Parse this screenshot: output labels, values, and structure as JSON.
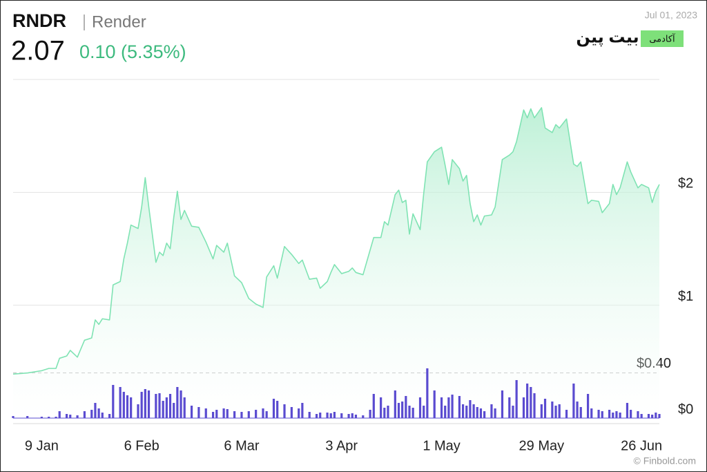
{
  "header": {
    "symbol": "RNDR",
    "name": "Render",
    "price": "2.07",
    "change": "0.10 (5.35%)",
    "date": "Jul 01, 2023"
  },
  "branding": {
    "logo": "بیت پین",
    "badge": "آکادمی",
    "credit": "© Finbold.com"
  },
  "chart_data": {
    "type": "line",
    "x": [
      0,
      4,
      8,
      10,
      12,
      13,
      15,
      16,
      18,
      20,
      22,
      23,
      24,
      25,
      27,
      28,
      30,
      31,
      32,
      33,
      35,
      36,
      37,
      38,
      40,
      41,
      42,
      43,
      44,
      45,
      46,
      47,
      48,
      50,
      52,
      54,
      56,
      57,
      59,
      60,
      62,
      64,
      66,
      68,
      70,
      71,
      73,
      74,
      76,
      78,
      80,
      81,
      83,
      85,
      86,
      88,
      89,
      90,
      92,
      94,
      95,
      96,
      98,
      100,
      101,
      103,
      104,
      105,
      107,
      108,
      109,
      110,
      111,
      112,
      114,
      115,
      116,
      118,
      120,
      121,
      122,
      123,
      125,
      126,
      127,
      128,
      129,
      130,
      131,
      132,
      134,
      135,
      137,
      139,
      140,
      141,
      143,
      144,
      145,
      146,
      148,
      149,
      151,
      152,
      153,
      155,
      157,
      158,
      159,
      161,
      162,
      164,
      165,
      167,
      168,
      169,
      170,
      172,
      173,
      175,
      176,
      178,
      179,
      180,
      181
    ],
    "series": [
      {
        "color": "#7fe3b3",
        "values": [
          0.39,
          0.4,
          0.42,
          0.44,
          0.44,
          0.53,
          0.55,
          0.6,
          0.54,
          0.69,
          0.71,
          0.87,
          0.83,
          0.88,
          0.87,
          1.18,
          1.21,
          1.41,
          1.55,
          1.71,
          1.68,
          1.87,
          2.13,
          1.87,
          1.38,
          1.47,
          1.44,
          1.55,
          1.5,
          1.78,
          2.01,
          1.76,
          1.84,
          1.7,
          1.69,
          1.56,
          1.41,
          1.53,
          1.47,
          1.55,
          1.26,
          1.2,
          1.06,
          1.01,
          0.98,
          1.25,
          1.35,
          1.24,
          1.52,
          1.45,
          1.37,
          1.4,
          1.23,
          1.24,
          1.15,
          1.21,
          1.29,
          1.36,
          1.28,
          1.3,
          1.33,
          1.29,
          1.27,
          1.49,
          1.6,
          1.6,
          1.74,
          1.71,
          1.98,
          2.02,
          1.91,
          1.93,
          1.63,
          1.81,
          1.67,
          1.99,
          2.27,
          2.36,
          2.4,
          2.24,
          2.07,
          2.29,
          2.21,
          2.1,
          2.15,
          1.9,
          1.74,
          1.8,
          1.71,
          1.79,
          1.8,
          1.87,
          2.29,
          2.33,
          2.36,
          2.45,
          2.73,
          2.66,
          2.74,
          2.66,
          2.75,
          2.57,
          2.53,
          2.6,
          2.57,
          2.65,
          2.25,
          2.23,
          2.27,
          1.9,
          1.93,
          1.92,
          1.82,
          1.9,
          2.07,
          1.98,
          2.04,
          2.27,
          2.18,
          2.04,
          2.07,
          2.04,
          1.91,
          2.01,
          2.07
        ]
      },
      {
        "color": "#5a4bd0",
        "type": "bar",
        "axis": "y2",
        "values": [
          3,
          3,
          2,
          2,
          2,
          10,
          6,
          5,
          4,
          10,
          12,
          22,
          14,
          8,
          6,
          48,
          45,
          38,
          33,
          30,
          20,
          38,
          42,
          40,
          35,
          36,
          25,
          30,
          35,
          22,
          45,
          40,
          30,
          18,
          16,
          14,
          9,
          12,
          14,
          13,
          10,
          9,
          10,
          12,
          14,
          10,
          28,
          25,
          20,
          16,
          14,
          22,
          9,
          6,
          8,
          8,
          7,
          9,
          7,
          6,
          7,
          5,
          4,
          12,
          35,
          30,
          15,
          18,
          40,
          22,
          24,
          32,
          18,
          15,
          30,
          18,
          72,
          40,
          30,
          18,
          30,
          34,
          32,
          20,
          18,
          26,
          20,
          16,
          14,
          10,
          20,
          14,
          40,
          30,
          18,
          55,
          30,
          50,
          45,
          36,
          20,
          28,
          24,
          18,
          20,
          12,
          50,
          24,
          16,
          35,
          14,
          12,
          10,
          12,
          8,
          10,
          8,
          22,
          12,
          10,
          6,
          6,
          5,
          8,
          6
        ]
      }
    ],
    "xlim": [
      0,
      181
    ],
    "xticks": [
      {
        "value": 8,
        "label": "9 Jan"
      },
      {
        "value": 36,
        "label": "6 Feb"
      },
      {
        "value": 64,
        "label": "6 Mar"
      },
      {
        "value": 92,
        "label": "3 Apr"
      },
      {
        "value": 120,
        "label": "1 May"
      },
      {
        "value": 148,
        "label": "29 May"
      },
      {
        "value": 176,
        "label": "26 Jun"
      }
    ],
    "ylim": [
      0,
      3
    ],
    "yticks": [
      {
        "value": 0,
        "label": "$0"
      },
      {
        "value": 1,
        "label": "$1"
      },
      {
        "value": 2,
        "label": "$2"
      }
    ],
    "y2lim": [
      0,
      490
    ],
    "annotations": [
      {
        "value": 0.4,
        "label": "$0.40"
      }
    ],
    "grid": true
  }
}
